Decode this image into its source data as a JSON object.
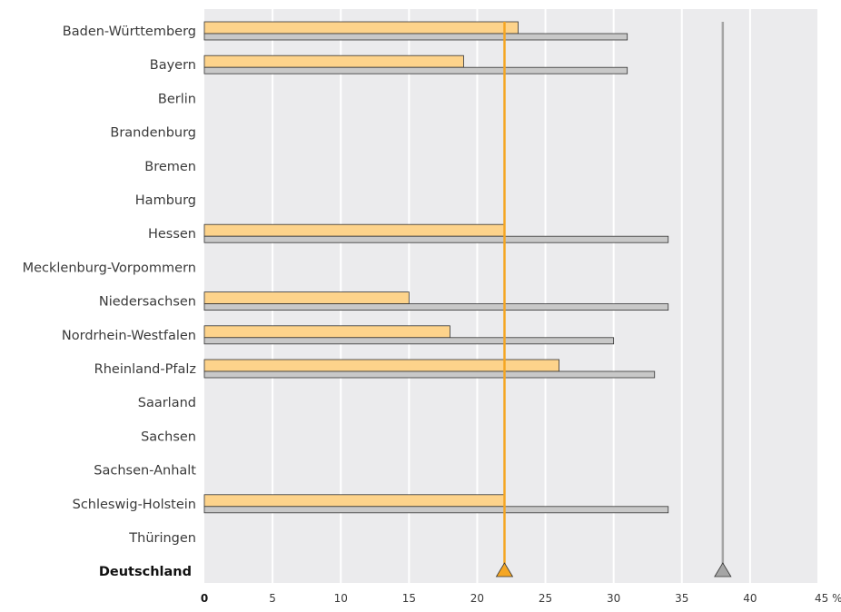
{
  "chart_data": {
    "type": "bar",
    "orientation": "horizontal",
    "categories": [
      "Baden-Württemberg",
      "Bayern",
      "Berlin",
      "Brandenburg",
      "Bremen",
      "Hamburg",
      "Hessen",
      "Mecklenburg-Vorpommern",
      "Niedersachsen",
      "Nordrhein-Westfalen",
      "Rheinland-Pfalz",
      "Saarland",
      "Sachsen",
      "Sachsen-Anhalt",
      "Schleswig-Holstein",
      "Thüringen"
    ],
    "total_label": "Deutschland",
    "series": [
      {
        "color": "#fdd38b",
        "values": [
          23,
          19,
          null,
          null,
          null,
          null,
          22,
          null,
          15,
          18,
          26,
          null,
          null,
          null,
          22,
          null
        ],
        "reference_value": 22,
        "reference_color": "#f5a623"
      },
      {
        "color": "#c8c8c8",
        "values": [
          31,
          31,
          null,
          null,
          null,
          null,
          34,
          null,
          34,
          30,
          33,
          null,
          null,
          null,
          34,
          null
        ],
        "reference_value": 38,
        "reference_color": "#a5a5a5"
      }
    ],
    "xlim": [
      0,
      45
    ],
    "xticks": [
      0,
      5,
      10,
      15,
      20,
      25,
      30,
      35,
      40,
      45
    ],
    "xtick_labels": [
      "0",
      "5",
      "10",
      "15",
      "20",
      "25",
      "30",
      "35",
      "40",
      "45 %"
    ],
    "grid": true,
    "legend": "none",
    "plot_background": "#ebebed"
  }
}
